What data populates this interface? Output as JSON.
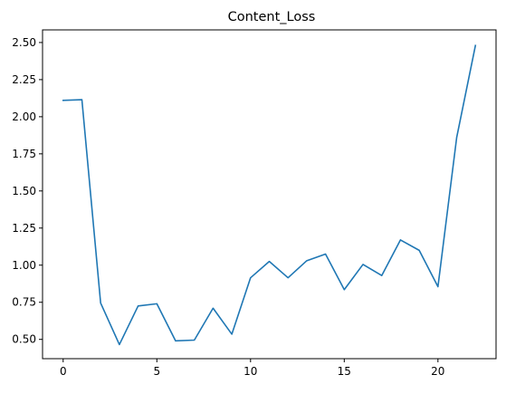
{
  "chart_data": {
    "type": "line",
    "title": "Content_Loss",
    "xlabel": "",
    "ylabel": "",
    "xlim": [
      -1.1,
      23.1
    ],
    "ylim": [
      0.37,
      2.585
    ],
    "xticks": [
      0,
      5,
      10,
      15,
      20
    ],
    "yticks": [
      0.5,
      0.75,
      1.0,
      1.25,
      1.5,
      1.75,
      2.0,
      2.25,
      2.5
    ],
    "grid": false,
    "series": [
      {
        "color": "#1f77b4",
        "x": [
          0,
          1,
          2,
          3,
          4,
          5,
          6,
          7,
          8,
          9,
          10,
          11,
          12,
          13,
          14,
          15,
          16,
          17,
          18,
          19,
          20,
          21,
          22
        ],
        "y": [
          2.11,
          2.115,
          0.745,
          0.465,
          0.725,
          0.74,
          0.49,
          0.495,
          0.71,
          0.535,
          0.915,
          1.025,
          0.915,
          1.03,
          1.075,
          0.835,
          1.005,
          0.93,
          1.17,
          1.1,
          0.855,
          1.86,
          2.48
        ]
      }
    ]
  }
}
